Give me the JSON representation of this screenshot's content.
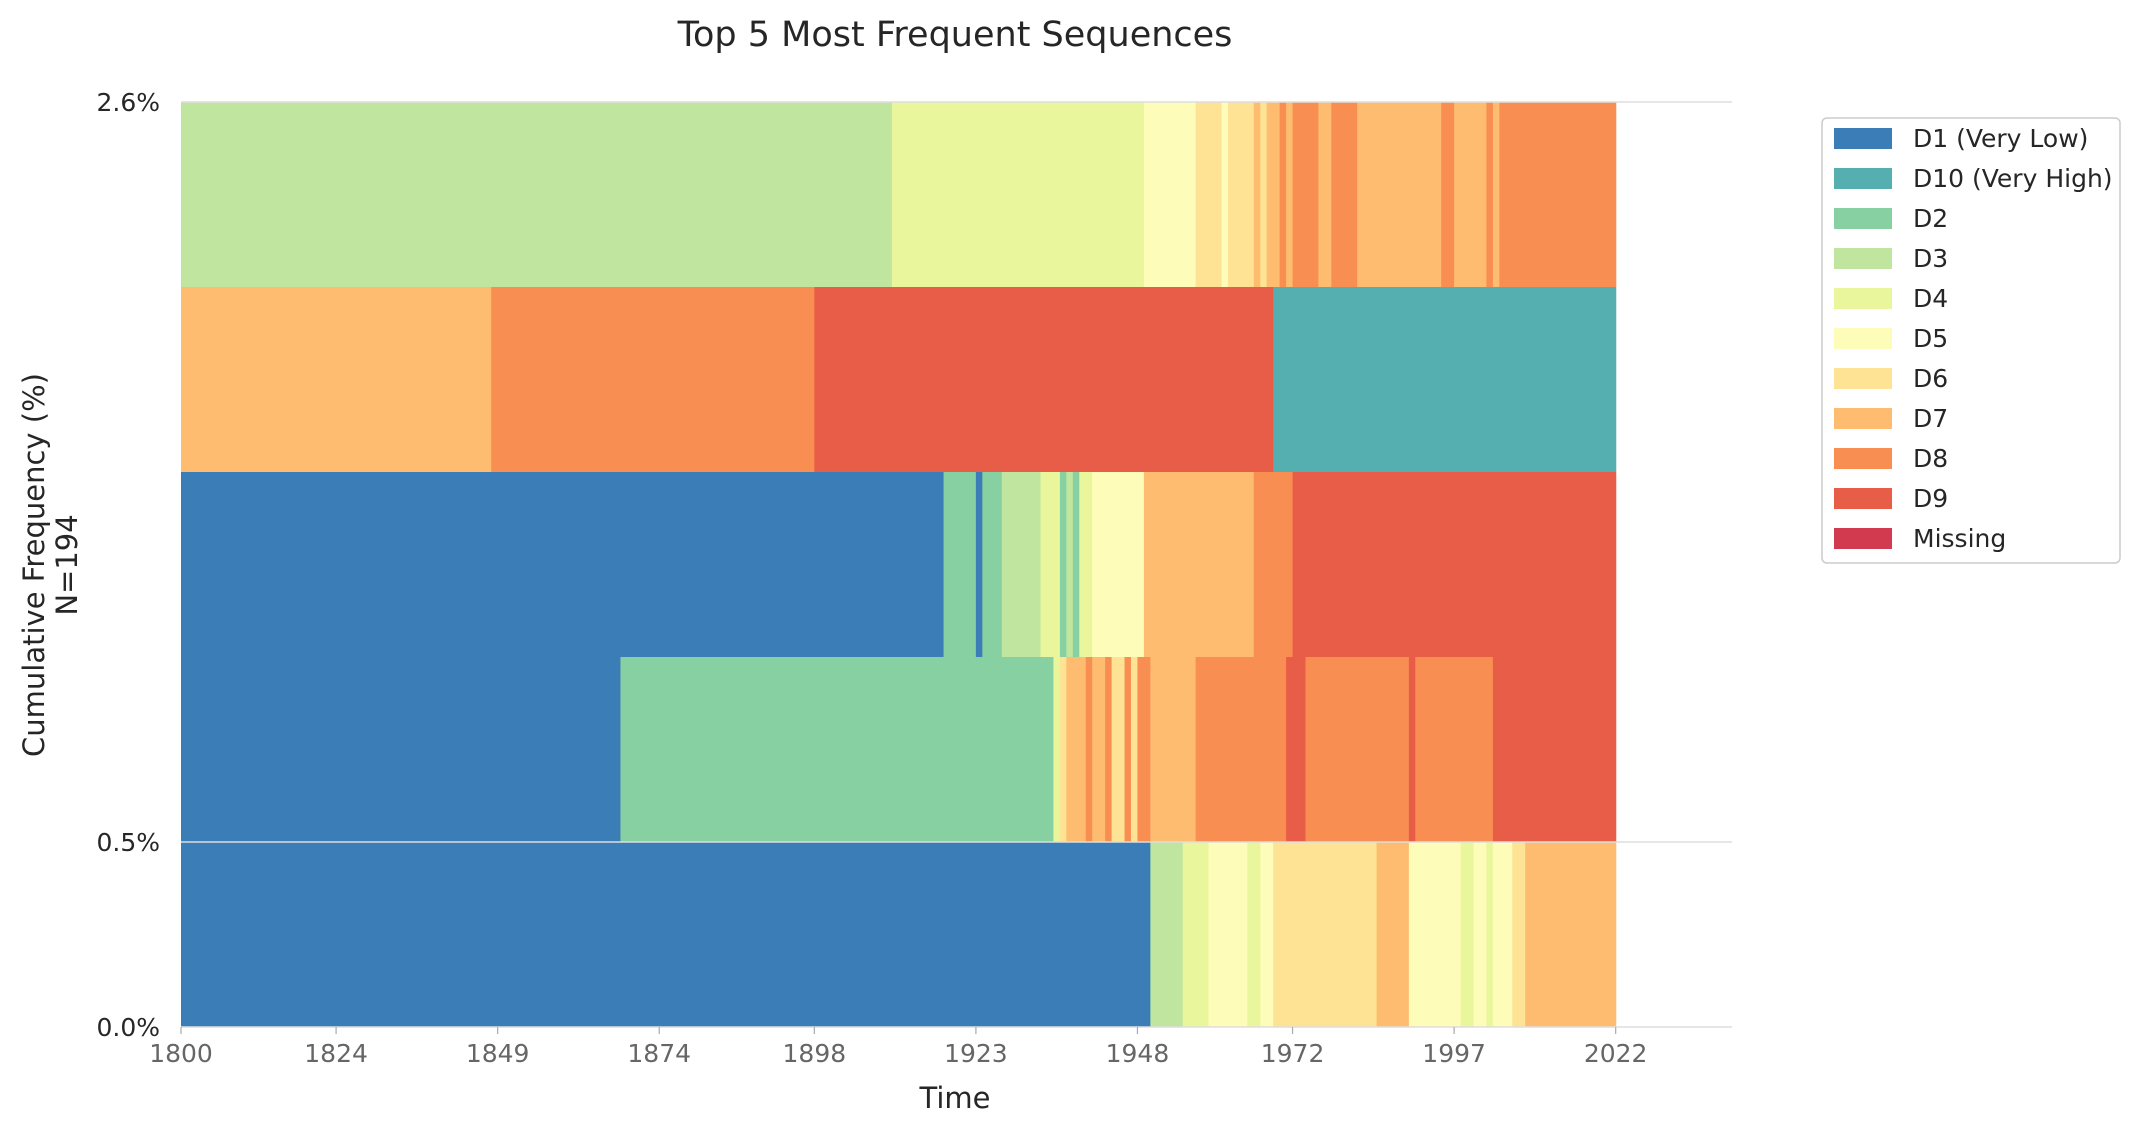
{
  "chart_data": {
    "type": "sequence_frequency",
    "title": "Top 5 Most Frequent Sequences",
    "xlabel": "Time",
    "ylabel": "Cumulative Frequency (%)",
    "ylabel_sub": "N=194",
    "xlim": [
      1800,
      2040
    ],
    "x_ticks": [
      1800,
      1824,
      1849,
      1874,
      1898,
      1923,
      1948,
      1972,
      1997,
      2022
    ],
    "y_tick_labels": [
      {
        "label": "0.0%",
        "row_edge": 0
      },
      {
        "label": "0.5%",
        "row_edge": 1
      },
      {
        "label": "2.6%",
        "row_edge": 5
      }
    ],
    "states": [
      {
        "name": "D1 (Very Low)",
        "color": "#3a7db7"
      },
      {
        "name": "D10 (Very High)",
        "color": "#55aeaf"
      },
      {
        "name": "D2",
        "color": "#87d0a1"
      },
      {
        "name": "D3",
        "color": "#c0e59e"
      },
      {
        "name": "D4",
        "color": "#e9f69c"
      },
      {
        "name": "D5",
        "color": "#fefcb9"
      },
      {
        "name": "D6",
        "color": "#fde393"
      },
      {
        "name": "D7",
        "color": "#fdbc6f"
      },
      {
        "name": "D8",
        "color": "#f98e52"
      },
      {
        "name": "D9",
        "color": "#e85d47"
      },
      {
        "name": "Missing",
        "color": "#d13a4f"
      }
    ],
    "sequences": [
      {
        "segments": [
          [
            "D1 (Very Low)",
            1800,
            1950
          ],
          [
            "D3",
            1950,
            1955
          ],
          [
            "D4",
            1955,
            1959
          ],
          [
            "D5",
            1959,
            1965
          ],
          [
            "D4",
            1965,
            1967
          ],
          [
            "D5",
            1967,
            1969
          ],
          [
            "D6",
            1969,
            1985
          ],
          [
            "D7",
            1985,
            1990
          ],
          [
            "D5",
            1990,
            1998
          ],
          [
            "D4",
            1998,
            2000
          ],
          [
            "D5",
            2000,
            2002
          ],
          [
            "D4",
            2002,
            2003
          ],
          [
            "D5",
            2003,
            2006
          ],
          [
            "D6",
            2006,
            2008
          ],
          [
            "D7",
            2008,
            2022
          ]
        ]
      },
      {
        "segments": [
          [
            "D1 (Very Low)",
            1800,
            1868
          ],
          [
            "D2",
            1868,
            1935
          ],
          [
            "D4",
            1935,
            1936
          ],
          [
            "D6",
            1936,
            1937
          ],
          [
            "D7",
            1937,
            1940
          ],
          [
            "D8",
            1940,
            1941
          ],
          [
            "D7",
            1941,
            1943
          ],
          [
            "D8",
            1943,
            1944
          ],
          [
            "D6",
            1944,
            1946
          ],
          [
            "D8",
            1946,
            1947
          ],
          [
            "D6",
            1947,
            1948
          ],
          [
            "D8",
            1948,
            1950
          ],
          [
            "D7",
            1950,
            1957
          ],
          [
            "D8",
            1957,
            1971
          ],
          [
            "D9",
            1971,
            1974
          ],
          [
            "D8",
            1974,
            1990
          ],
          [
            "D9",
            1990,
            1991
          ],
          [
            "D8",
            1991,
            2003
          ],
          [
            "D9",
            2003,
            2022
          ]
        ]
      },
      {
        "segments": [
          [
            "D1 (Very Low)",
            1800,
            1918
          ],
          [
            "D2",
            1918,
            1923
          ],
          [
            "D1 (Very Low)",
            1923,
            1924
          ],
          [
            "D2",
            1924,
            1927
          ],
          [
            "D3",
            1927,
            1933
          ],
          [
            "D4",
            1933,
            1936
          ],
          [
            "D2",
            1936,
            1937
          ],
          [
            "D3",
            1937,
            1938
          ],
          [
            "D2",
            1938,
            1939
          ],
          [
            "D4",
            1939,
            1941
          ],
          [
            "D5",
            1941,
            1949
          ],
          [
            "D7",
            1949,
            1966
          ],
          [
            "D8",
            1966,
            1972
          ],
          [
            "D9",
            1972,
            2022
          ]
        ]
      },
      {
        "segments": [
          [
            "D7",
            1800,
            1848
          ],
          [
            "D8",
            1848,
            1898
          ],
          [
            "D9",
            1898,
            1969
          ],
          [
            "D10 (Very High)",
            1969,
            2022
          ]
        ]
      },
      {
        "segments": [
          [
            "D3",
            1800,
            1910
          ],
          [
            "D4",
            1910,
            1949
          ],
          [
            "D5",
            1949,
            1957
          ],
          [
            "D6",
            1957,
            1961
          ],
          [
            "D5",
            1961,
            1962
          ],
          [
            "D6",
            1962,
            1966
          ],
          [
            "D7",
            1966,
            1967
          ],
          [
            "D6",
            1967,
            1968
          ],
          [
            "D7",
            1968,
            1970
          ],
          [
            "D8",
            1970,
            1971
          ],
          [
            "D7",
            1971,
            1972
          ],
          [
            "D8",
            1972,
            1976
          ],
          [
            "D7",
            1976,
            1978
          ],
          [
            "D8",
            1978,
            1982
          ],
          [
            "D7",
            1982,
            1995
          ],
          [
            "D8",
            1995,
            1997
          ],
          [
            "D7",
            1997,
            2002
          ],
          [
            "D8",
            2002,
            2003
          ],
          [
            "D7",
            2003,
            2004
          ],
          [
            "D8",
            2004,
            2022
          ]
        ]
      }
    ],
    "legend_position": "right",
    "grid": false
  }
}
